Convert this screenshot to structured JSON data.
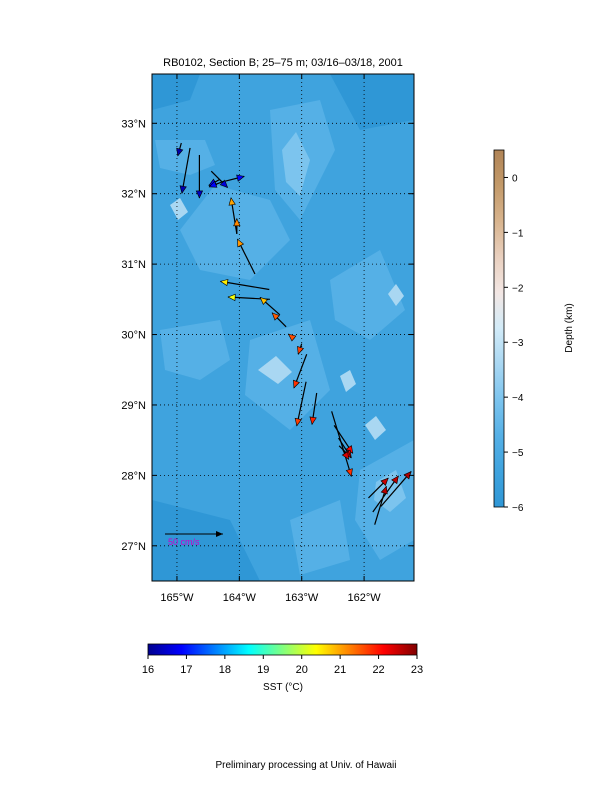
{
  "chart_data": {
    "type": "scatter",
    "title": "RB0102, Section B; 25–75 m; 03/16–03/18, 2001",
    "footer": "Preliminary processing at Univ. of Hawaii",
    "map": {
      "x_range": [
        -165.4,
        -161.2
      ],
      "y_range": [
        26.5,
        33.7
      ],
      "x_ticks": [
        -165,
        -164,
        -163,
        -162
      ],
      "x_tick_labels": [
        "165°W",
        "164°W",
        "163°W",
        "162°W"
      ],
      "y_ticks": [
        27,
        28,
        29,
        30,
        31,
        32,
        33
      ],
      "y_tick_labels": [
        "27°N",
        "28°N",
        "29°N",
        "30°N",
        "31°N",
        "32°N",
        "33°N"
      ],
      "grid": true,
      "background_color": "#3fa3de",
      "seamount_color": "#a9d7f2"
    },
    "scale_arrow": {
      "label": "50 cm/s",
      "speed": 50,
      "label_color": "#cc00cc"
    },
    "vectors": {
      "units": "cm/s",
      "points": [
        {
          "lon": -164.93,
          "lat": 32.72,
          "u": -3,
          "v": -11,
          "sst": 16.2
        },
        {
          "lon": -164.79,
          "lat": 32.65,
          "u": -7,
          "v": -39,
          "sst": 16.3
        },
        {
          "lon": -164.64,
          "lat": 32.55,
          "u": 0,
          "v": -37,
          "sst": 16.4
        },
        {
          "lon": -164.45,
          "lat": 32.32,
          "u": 14,
          "v": -14,
          "sst": 16.6
        },
        {
          "lon": -164.32,
          "lat": 32.2,
          "u": -9,
          "v": -5,
          "sst": 16.8
        },
        {
          "lon": -164.22,
          "lat": 32.18,
          "u": 16,
          "v": 4,
          "sst": 16.9
        },
        {
          "lon": -164.24,
          "lat": 32.18,
          "u": -13,
          "v": -5,
          "sst": 16.9
        },
        {
          "lon": -164.04,
          "lat": 31.43,
          "u": -5,
          "v": 31,
          "sst": 21.0
        },
        {
          "lon": -164.04,
          "lat": 31.43,
          "u": 0,
          "v": 13,
          "sst": 21.2
        },
        {
          "lon": -163.75,
          "lat": 30.86,
          "u": -15,
          "v": 30,
          "sst": 21.1
        },
        {
          "lon": -163.52,
          "lat": 30.64,
          "u": -42,
          "v": 7,
          "sst": 20.5
        },
        {
          "lon": -163.51,
          "lat": 30.5,
          "u": -36,
          "v": 2,
          "sst": 20.3
        },
        {
          "lon": -163.35,
          "lat": 30.28,
          "u": -17,
          "v": 15,
          "sst": 20.8
        },
        {
          "lon": -163.25,
          "lat": 30.11,
          "u": -12,
          "v": 12,
          "sst": 21.5
        },
        {
          "lon": -163.12,
          "lat": 29.94,
          "u": -5,
          "v": 4,
          "sst": 21.6
        },
        {
          "lon": -163.0,
          "lat": 29.87,
          "u": -3,
          "v": -9,
          "sst": 21.7
        },
        {
          "lon": -162.92,
          "lat": 29.72,
          "u": -11,
          "v": -29,
          "sst": 21.8
        },
        {
          "lon": -162.93,
          "lat": 29.33,
          "u": -8,
          "v": -38,
          "sst": 21.7
        },
        {
          "lon": -162.76,
          "lat": 29.17,
          "u": -4,
          "v": -27,
          "sst": 21.9
        },
        {
          "lon": -162.52,
          "lat": 28.91,
          "u": 17,
          "v": -56,
          "sst": 21.8
        },
        {
          "lon": -162.48,
          "lat": 28.71,
          "u": 16,
          "v": -24,
          "sst": 22.1
        },
        {
          "lon": -162.41,
          "lat": 28.53,
          "u": 11,
          "v": -17,
          "sst": 22.2
        },
        {
          "lon": -162.4,
          "lat": 28.42,
          "u": 10,
          "v": -10,
          "sst": 22.3
        },
        {
          "lon": -162.34,
          "lat": 28.36,
          "u": 5,
          "v": -8,
          "sst": 22.4
        },
        {
          "lon": -161.93,
          "lat": 27.68,
          "u": 17,
          "v": 17,
          "sst": 22.5
        },
        {
          "lon": -161.86,
          "lat": 27.48,
          "u": 22,
          "v": 31,
          "sst": 22.6
        },
        {
          "lon": -161.73,
          "lat": 27.56,
          "u": 26,
          "v": 30,
          "sst": 22.7
        },
        {
          "lon": -161.83,
          "lat": 27.3,
          "u": 10,
          "v": 33,
          "sst": 22.6
        }
      ]
    },
    "depth_colorbar": {
      "label": "Depth (km)",
      "range": [
        -6,
        0.5
      ],
      "ticks": [
        0,
        -1,
        -2,
        -3,
        -4,
        -5,
        -6
      ],
      "tick_labels": [
        "0",
        "−1",
        "−2",
        "−3",
        "−4",
        "−5",
        "−6"
      ],
      "colors": [
        "#2f97d6",
        "#3fa3de",
        "#55b0e6",
        "#7cc4ee",
        "#a9d7f2",
        "#d2ebf8",
        "#f3e7e4",
        "#e9d0bf",
        "#d8b48e",
        "#c39a6a",
        "#b08457"
      ]
    },
    "sst_colorbar": {
      "label": "SST (°C)",
      "range": [
        16,
        23
      ],
      "ticks": [
        16,
        17,
        18,
        19,
        20,
        21,
        22,
        23
      ],
      "tick_labels": [
        "16",
        "17",
        "18",
        "19",
        "20",
        "21",
        "22",
        "23"
      ],
      "colors": [
        "#00008f",
        "#0000ff",
        "#0080ff",
        "#00ffff",
        "#80ff80",
        "#ffff00",
        "#ff8000",
        "#ff0000",
        "#800000"
      ]
    }
  }
}
